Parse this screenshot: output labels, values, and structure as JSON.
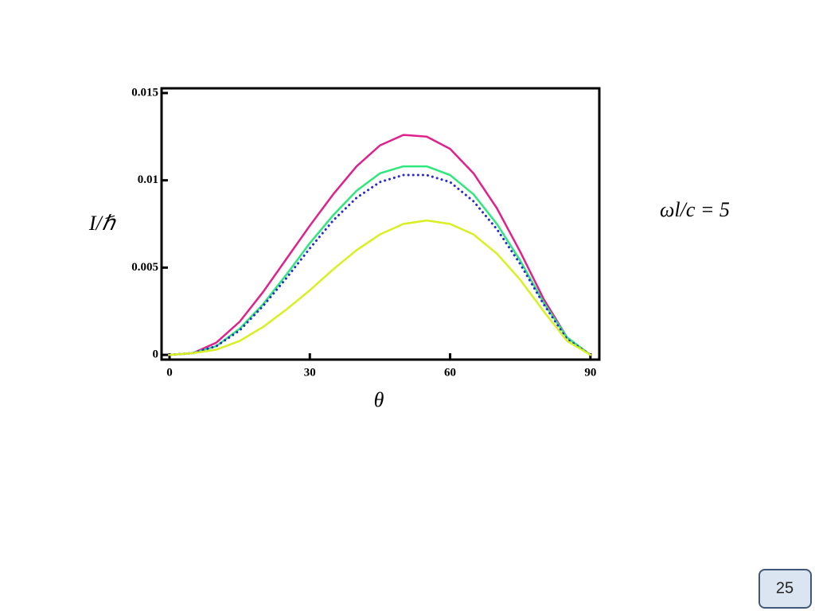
{
  "chart_data": {
    "type": "line",
    "y_label": "I/ℏ",
    "x_label": "θ",
    "annotation": "ωl/c = 5",
    "x": [
      0,
      5,
      10,
      15,
      20,
      25,
      30,
      35,
      40,
      45,
      50,
      55,
      60,
      65,
      70,
      75,
      80,
      85,
      90
    ],
    "series": [
      {
        "color": "#e0208c",
        "style": "solid",
        "values": [
          0,
          0.0001,
          0.0007,
          0.0019,
          0.0036,
          0.0055,
          0.0074,
          0.0092,
          0.0108,
          0.012,
          0.0126,
          0.0125,
          0.0118,
          0.0104,
          0.0084,
          0.0059,
          0.0032,
          0.001,
          0
        ]
      },
      {
        "color": "#2ee87c",
        "style": "solid",
        "values": [
          0,
          0.0001,
          0.0005,
          0.0015,
          0.0029,
          0.0046,
          0.0064,
          0.008,
          0.0094,
          0.0104,
          0.0108,
          0.0108,
          0.0103,
          0.0092,
          0.0075,
          0.0054,
          0.003,
          0.001,
          0
        ]
      },
      {
        "color": "#2a2ad0",
        "style": "dotted",
        "values": [
          0,
          0.0001,
          0.0005,
          0.0014,
          0.0028,
          0.0044,
          0.0061,
          0.0077,
          0.009,
          0.0099,
          0.0103,
          0.0103,
          0.0099,
          0.0088,
          0.0072,
          0.0052,
          0.0029,
          0.0009,
          0
        ]
      },
      {
        "color": "#d8f020",
        "style": "solid",
        "values": [
          0,
          0.0001,
          0.0003,
          0.0008,
          0.0016,
          0.0026,
          0.0037,
          0.0049,
          0.006,
          0.0069,
          0.0075,
          0.0077,
          0.0075,
          0.0069,
          0.0058,
          0.0043,
          0.0025,
          0.0008,
          0
        ]
      }
    ],
    "xlim": [
      -1.7,
      91.9
    ],
    "xticks": [
      0,
      30,
      60,
      90
    ],
    "ylim": [
      -0.00027,
      0.01527
    ],
    "yticks": [
      0,
      0.005,
      0.01,
      0.015
    ]
  },
  "page_number": "25"
}
